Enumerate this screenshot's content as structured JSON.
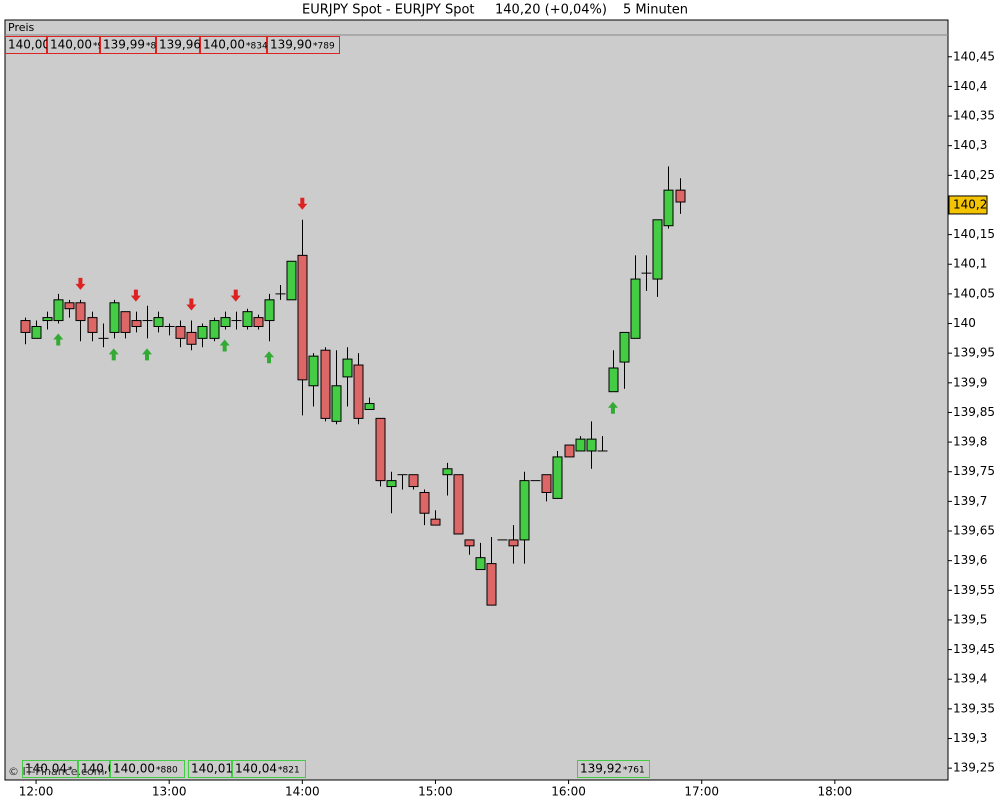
{
  "chart_data": {
    "type": "candlestick",
    "title": "EURJPY Spot - EURJPY Spot",
    "price_change": "140,20 (+0,04%)",
    "interval": "5 Minuten",
    "panel_label": "Preis",
    "copyright": "© IT-Finance.com",
    "up_color": "#44cc44",
    "down_color": "#dd6666",
    "x": [
      "11:55",
      "12:00",
      "12:05",
      "12:10",
      "12:15",
      "12:20",
      "12:25",
      "12:30",
      "12:35",
      "12:40",
      "12:45",
      "12:50",
      "12:55",
      "13:00",
      "13:05",
      "13:10",
      "13:15",
      "13:20",
      "13:25",
      "13:30",
      "13:35",
      "13:40",
      "13:45",
      "13:50",
      "13:55",
      "14:00",
      "14:05",
      "14:10",
      "14:15",
      "14:20",
      "14:25",
      "14:30",
      "14:35",
      "14:40",
      "14:45",
      "14:50",
      "14:55",
      "15:00",
      "15:05",
      "15:10",
      "15:15",
      "15:20",
      "15:25",
      "15:30",
      "15:35",
      "15:40",
      "15:45",
      "15:50",
      "15:55",
      "16:00",
      "16:05",
      "16:10",
      "16:15",
      "16:20",
      "16:25",
      "16:30",
      "16:35",
      "16:40",
      "16:45",
      "16:50"
    ],
    "open": [
      140.005,
      139.975,
      140.005,
      140.005,
      140.035,
      140.035,
      140.01,
      139.975,
      139.985,
      140.02,
      140.005,
      140.005,
      139.995,
      139.995,
      139.995,
      139.985,
      139.975,
      139.975,
      139.995,
      140.005,
      139.995,
      140.01,
      140.005,
      140.05,
      140.04,
      140.115,
      139.895,
      139.955,
      139.835,
      139.91,
      139.93,
      139.855,
      139.84,
      139.725,
      139.745,
      139.745,
      139.715,
      139.67,
      139.745,
      139.745,
      139.635,
      139.585,
      139.595,
      139.635,
      139.635,
      139.635,
      139.735,
      139.745,
      139.705,
      139.795,
      139.785,
      139.785,
      139.785,
      139.885,
      139.935,
      139.975,
      140.085,
      140.075,
      140.165,
      140.225
    ],
    "high": [
      140.01,
      140.005,
      140.02,
      140.05,
      140.04,
      140.04,
      140.02,
      140.0,
      140.04,
      140.02,
      140.02,
      140.03,
      140.02,
      140.0,
      140.005,
      140.005,
      140.0,
      140.01,
      140.02,
      140.02,
      140.025,
      140.015,
      140.05,
      140.065,
      140.105,
      140.175,
      139.95,
      139.96,
      139.955,
      139.96,
      139.95,
      139.875,
      139.84,
      139.75,
      139.745,
      139.745,
      139.72,
      139.685,
      139.765,
      139.745,
      139.635,
      139.63,
      139.64,
      139.635,
      139.66,
      139.75,
      139.735,
      139.745,
      139.785,
      139.795,
      139.81,
      139.835,
      139.81,
      139.955,
      139.985,
      140.115,
      140.115,
      140.175,
      140.265,
      140.245
    ],
    "low": [
      139.965,
      139.975,
      139.99,
      140.0,
      140.01,
      139.97,
      139.97,
      139.96,
      139.975,
      139.975,
      139.985,
      139.975,
      139.985,
      139.98,
      139.96,
      139.955,
      139.96,
      139.97,
      139.99,
      139.99,
      139.99,
      139.99,
      139.97,
      140.04,
      140.04,
      139.845,
      139.86,
      139.835,
      139.83,
      139.86,
      139.83,
      139.855,
      139.725,
      139.68,
      139.72,
      139.72,
      139.66,
      139.66,
      139.71,
      139.645,
      139.61,
      139.585,
      139.525,
      139.635,
      139.595,
      139.595,
      139.735,
      139.7,
      139.705,
      139.775,
      139.785,
      139.755,
      139.785,
      139.885,
      139.89,
      139.975,
      140.055,
      140.045,
      140.16,
      140.185
    ],
    "close": [
      139.985,
      139.995,
      140.01,
      140.04,
      140.025,
      140.005,
      139.985,
      139.975,
      140.035,
      139.985,
      139.995,
      140.005,
      140.01,
      139.995,
      139.975,
      139.965,
      139.995,
      140.005,
      140.01,
      140.005,
      140.02,
      139.995,
      140.04,
      140.05,
      140.105,
      139.905,
      139.945,
      139.84,
      139.895,
      139.94,
      139.84,
      139.865,
      139.735,
      139.735,
      139.745,
      139.725,
      139.68,
      139.66,
      139.755,
      139.645,
      139.625,
      139.605,
      139.525,
      139.635,
      139.625,
      139.735,
      139.735,
      139.715,
      139.775,
      139.775,
      139.805,
      139.805,
      139.785,
      139.925,
      139.985,
      140.075,
      140.085,
      140.175,
      140.225,
      140.205
    ],
    "buy_signals": [
      "12:10",
      "12:35",
      "12:50",
      "13:25",
      "13:45",
      "16:20"
    ],
    "sell_signals": [
      "12:20",
      "12:45",
      "13:10",
      "13:30",
      "14:00"
    ],
    "last_price": {
      "value": 140.2,
      "label": "140,2"
    },
    "top_labels": [
      {
        "text": "140,00"
      },
      {
        "text": "140,00",
        "note": "*9"
      },
      {
        "text": "139,99",
        "note": "*8"
      },
      {
        "text": "139,96"
      },
      {
        "text": "140,00",
        "note": "*834"
      },
      {
        "text": "139,90",
        "note": "*789"
      }
    ],
    "bottom_labels": [
      {
        "text": "140,04",
        "note": "*"
      },
      {
        "text": "140,0"
      },
      {
        "text": "140,00",
        "note": "*880"
      },
      {
        "text": "140,01"
      },
      {
        "text": "140,04",
        "note": "*821"
      },
      {
        "text": "139,92",
        "note": "*761"
      }
    ],
    "xlim": [
      "11:46",
      "18:51"
    ],
    "xticks": [
      "12:00",
      "13:00",
      "14:00",
      "15:00",
      "16:00",
      "17:00",
      "18:00"
    ],
    "ylim": [
      139.23,
      140.512
    ],
    "yticks": [
      {
        "value": 140.45,
        "label": "140,45"
      },
      {
        "value": 140.4,
        "label": "140,4"
      },
      {
        "value": 140.35,
        "label": "140,35"
      },
      {
        "value": 140.3,
        "label": "140,3"
      },
      {
        "value": 140.25,
        "label": "140,25"
      },
      {
        "value": 140.2,
        "label": "140,2"
      },
      {
        "value": 140.15,
        "label": "140,15"
      },
      {
        "value": 140.1,
        "label": "140,1"
      },
      {
        "value": 140.05,
        "label": "140,05"
      },
      140,
      {
        "value": 139.95,
        "label": "139,95"
      },
      {
        "value": 139.9,
        "label": "139,9"
      },
      {
        "value": 139.85,
        "label": "139,85"
      },
      {
        "value": 139.8,
        "label": "139,8"
      },
      {
        "value": 139.75,
        "label": "139,75"
      },
      {
        "value": 139.7,
        "label": "139,7"
      },
      {
        "value": 139.65,
        "label": "139,65"
      },
      {
        "value": 139.6,
        "label": "139,6"
      },
      {
        "value": 139.55,
        "label": "139,55"
      },
      {
        "value": 139.5,
        "label": "139,5"
      },
      {
        "value": 139.45,
        "label": "139,45"
      },
      {
        "value": 139.4,
        "label": "139,4"
      },
      {
        "value": 139.35,
        "label": "139,35"
      },
      {
        "value": 139.3,
        "label": "139,3"
      },
      {
        "value": 139.25,
        "label": "139,25"
      }
    ],
    "grid": false
  }
}
